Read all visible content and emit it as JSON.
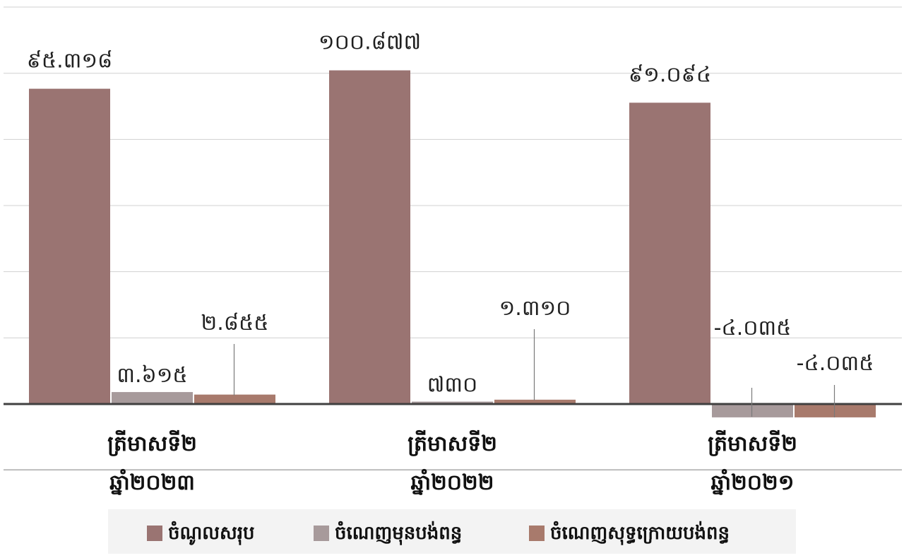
{
  "chart_data": {
    "type": "bar",
    "title": "",
    "xlabel": "",
    "ylabel": "",
    "grid": true,
    "legend_position": "bottom",
    "categories": [
      [
        "ត្រីមាសទី២",
        "ឆ្នាំ២០២៣"
      ],
      [
        "ត្រីមាសទី២",
        "ឆ្នាំ២០២២"
      ],
      [
        "ត្រីមាសទី២",
        "ឆ្នាំ២០២១"
      ]
    ],
    "ylim": [
      -20,
      120
    ],
    "series": [
      {
        "name": "ចំណូលសរុប",
        "color": "#9a7472",
        "values": [
          95.318,
          100.877,
          91.094
        ],
        "labels": [
          "៩៥.៣១៨",
          "១០០.៨៧៧",
          "៩១.០៩៤"
        ]
      },
      {
        "name": "ចំណេញមុនបង់ពន្ធ",
        "color": "#a79a9b",
        "values": [
          3.615,
          0.73,
          -4.035
        ],
        "labels": [
          "៣.៦១៥",
          "៧៣០",
          "-៤.០៣៥"
        ]
      },
      {
        "name": "ចំណេញសុទ្ធក្រោយបង់ពន្ធ",
        "color": "#a87a6c",
        "values": [
          2.855,
          1.31,
          -4.035
        ],
        "labels": [
          "២.៨៥៥",
          "១.៣១០",
          "-៤.០៣៥"
        ]
      }
    ]
  }
}
